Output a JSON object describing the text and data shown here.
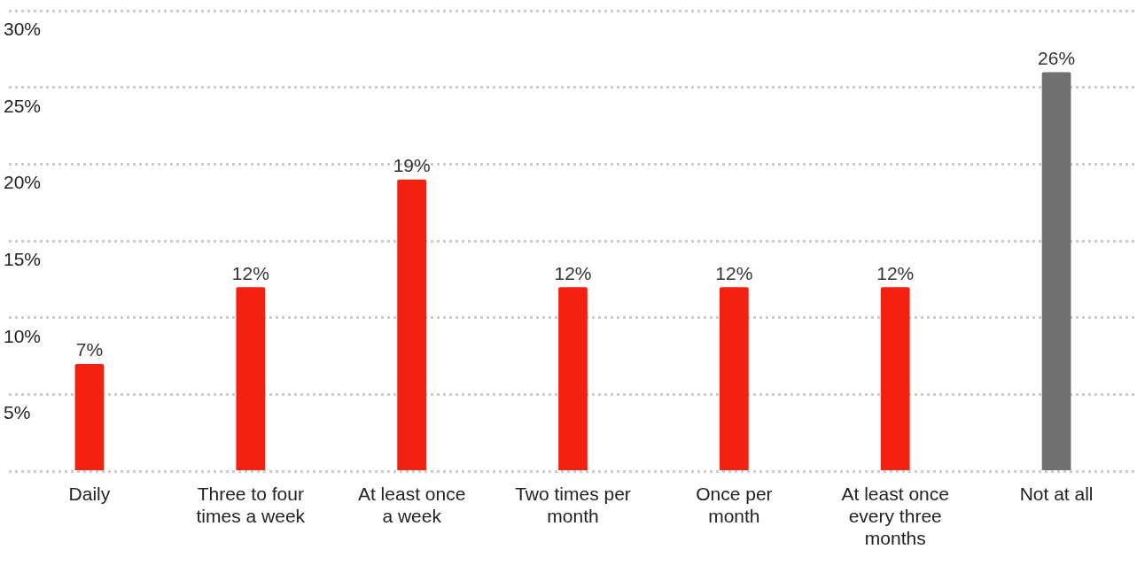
{
  "chart_data": {
    "type": "bar",
    "categories": [
      "Daily",
      "Three to four times a week",
      "At least once a week",
      "Two times per month",
      "Once per month",
      "At least once every three months",
      "Not at all"
    ],
    "values": [
      7,
      12,
      19,
      12,
      12,
      12,
      26
    ],
    "colors": [
      "#f42010",
      "#f42010",
      "#f42010",
      "#f42010",
      "#f42010",
      "#f42010",
      "#707070"
    ],
    "ylim": [
      0,
      30
    ],
    "yticks": [
      {
        "value": 0,
        "label": null
      },
      {
        "value": 5,
        "label": "5%"
      },
      {
        "value": 10,
        "label": "10%"
      },
      {
        "value": 15,
        "label": "15%"
      },
      {
        "value": 20,
        "label": "20%"
      },
      {
        "value": 25,
        "label": "25%"
      },
      {
        "value": 30,
        "label": "30%"
      }
    ],
    "value_labels": [
      "7%",
      "12%",
      "19%",
      "12%",
      "12%",
      "12%",
      "26%"
    ],
    "grid": "y",
    "legend": false
  }
}
